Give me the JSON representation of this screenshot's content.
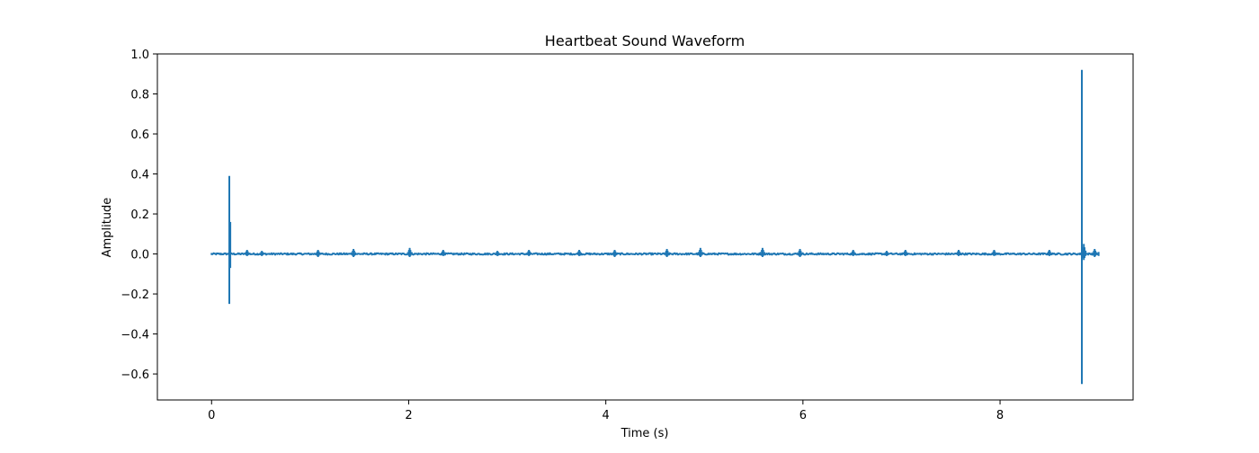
{
  "chart_data": {
    "type": "line",
    "title": "Heartbeat Sound Waveform",
    "xlabel": "Time (s)",
    "ylabel": "Amplitude",
    "xlim": [
      -0.55,
      9.35
    ],
    "ylim": [
      -0.73,
      1.0
    ],
    "xticks": [
      0,
      2,
      4,
      6,
      8
    ],
    "yticks": [
      -0.6,
      -0.4,
      -0.2,
      0.0,
      0.2,
      0.4,
      0.6,
      0.8,
      1.0
    ],
    "xtick_labels": [
      "0",
      "2",
      "4",
      "6",
      "8"
    ],
    "ytick_labels": [
      "−0.6",
      "−0.4",
      "−0.2",
      "0.0",
      "0.2",
      "0.4",
      "0.6",
      "0.8",
      "1.0"
    ],
    "grid": false,
    "legend": "none",
    "color": "#1f77b4",
    "series": [
      {
        "x_range": [
          0,
          9.0
        ],
        "baseline": 0.0,
        "peaks": [
          {
            "t": 0.18,
            "max": 0.39,
            "min": -0.25
          },
          {
            "t": 0.19,
            "max": 0.16,
            "min": -0.07
          },
          {
            "t": 0.36,
            "max": 0.02,
            "min": -0.01
          },
          {
            "t": 0.51,
            "max": 0.015,
            "min": -0.01
          },
          {
            "t": 1.08,
            "max": 0.02,
            "min": -0.015
          },
          {
            "t": 1.44,
            "max": 0.025,
            "min": -0.015
          },
          {
            "t": 2.01,
            "max": 0.03,
            "min": -0.015
          },
          {
            "t": 2.35,
            "max": 0.02,
            "min": -0.01
          },
          {
            "t": 2.9,
            "max": 0.015,
            "min": -0.01
          },
          {
            "t": 3.22,
            "max": 0.02,
            "min": -0.01
          },
          {
            "t": 3.73,
            "max": 0.02,
            "min": -0.01
          },
          {
            "t": 4.09,
            "max": 0.02,
            "min": -0.015
          },
          {
            "t": 4.62,
            "max": 0.025,
            "min": -0.015
          },
          {
            "t": 4.96,
            "max": 0.03,
            "min": -0.015
          },
          {
            "t": 5.59,
            "max": 0.03,
            "min": -0.015
          },
          {
            "t": 5.97,
            "max": 0.025,
            "min": -0.015
          },
          {
            "t": 6.51,
            "max": 0.02,
            "min": -0.01
          },
          {
            "t": 6.85,
            "max": 0.015,
            "min": -0.01
          },
          {
            "t": 7.04,
            "max": 0.02,
            "min": -0.01
          },
          {
            "t": 7.58,
            "max": 0.02,
            "min": -0.01
          },
          {
            "t": 7.94,
            "max": 0.02,
            "min": -0.01
          },
          {
            "t": 8.5,
            "max": 0.02,
            "min": -0.01
          },
          {
            "t": 8.83,
            "max": 0.92,
            "min": -0.65
          },
          {
            "t": 8.85,
            "max": 0.05,
            "min": -0.03
          },
          {
            "t": 8.96,
            "max": 0.025,
            "min": -0.015
          }
        ]
      }
    ]
  }
}
